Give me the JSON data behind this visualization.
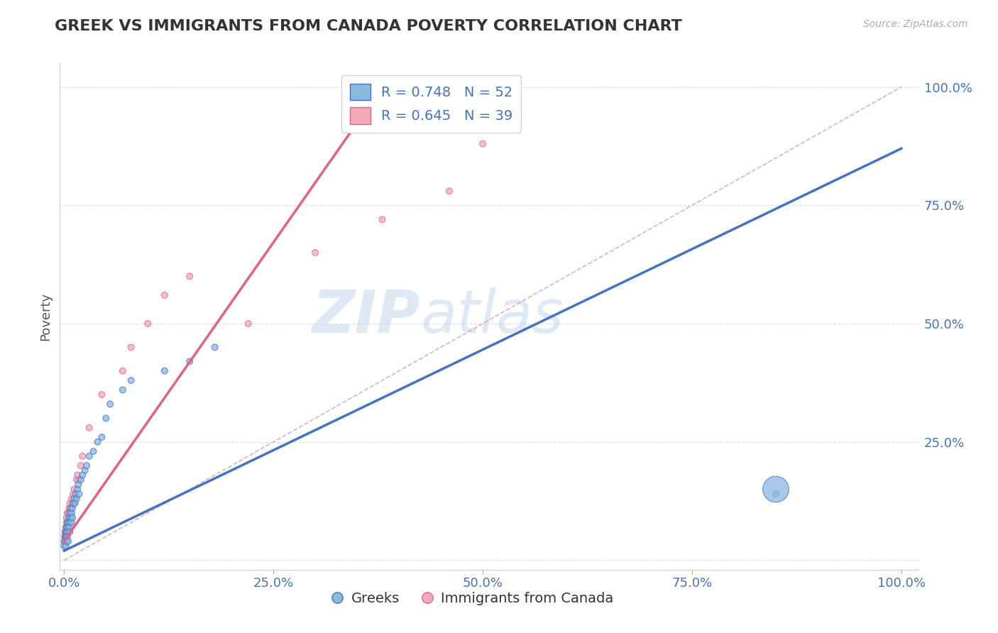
{
  "title": "GREEK VS IMMIGRANTS FROM CANADA POVERTY CORRELATION CHART",
  "source_text": "Source: ZipAtlas.com",
  "ylabel": "Poverty",
  "watermark_zip": "ZIP",
  "watermark_atlas": "atlas",
  "background_color": "#ffffff",
  "blue_color": "#89b8e0",
  "pink_color": "#f4a8bc",
  "blue_line_color": "#4472c4",
  "pink_line_color": "#e8607a",
  "legend_blue_label": "R = 0.748   N = 52",
  "legend_pink_label": "R = 0.645   N = 39",
  "bottom_legend_blue": "Greeks",
  "bottom_legend_pink": "Immigrants from Canada",
  "Greeks_x": [
    0.0,
    0.001,
    0.001,
    0.002,
    0.002,
    0.002,
    0.003,
    0.003,
    0.003,
    0.003,
    0.004,
    0.004,
    0.004,
    0.005,
    0.005,
    0.005,
    0.006,
    0.006,
    0.007,
    0.007,
    0.007,
    0.008,
    0.008,
    0.009,
    0.009,
    0.01,
    0.01,
    0.011,
    0.012,
    0.013,
    0.014,
    0.015,
    0.016,
    0.017,
    0.018,
    0.02,
    0.022,
    0.025,
    0.027,
    0.03,
    0.035,
    0.04,
    0.045,
    0.05,
    0.055,
    0.07,
    0.08,
    0.12,
    0.15,
    0.18,
    0.85,
    0.85
  ],
  "Greeks_y": [
    0.03,
    0.04,
    0.05,
    0.03,
    0.05,
    0.06,
    0.04,
    0.05,
    0.06,
    0.07,
    0.05,
    0.07,
    0.08,
    0.04,
    0.06,
    0.08,
    0.07,
    0.09,
    0.06,
    0.08,
    0.1,
    0.09,
    0.11,
    0.08,
    0.1,
    0.09,
    0.11,
    0.12,
    0.13,
    0.12,
    0.14,
    0.13,
    0.15,
    0.16,
    0.14,
    0.17,
    0.18,
    0.19,
    0.2,
    0.22,
    0.23,
    0.25,
    0.26,
    0.3,
    0.33,
    0.36,
    0.38,
    0.4,
    0.42,
    0.45,
    0.14,
    0.15
  ],
  "Greeks_sizes": [
    40,
    40,
    40,
    40,
    40,
    40,
    40,
    40,
    40,
    40,
    40,
    40,
    40,
    40,
    40,
    40,
    40,
    40,
    40,
    40,
    40,
    40,
    40,
    40,
    40,
    40,
    40,
    40,
    40,
    40,
    40,
    40,
    40,
    40,
    40,
    40,
    40,
    40,
    40,
    40,
    40,
    40,
    40,
    40,
    40,
    40,
    40,
    40,
    40,
    40,
    40,
    700
  ],
  "Canada_x": [
    0.0,
    0.001,
    0.001,
    0.002,
    0.002,
    0.003,
    0.003,
    0.003,
    0.004,
    0.004,
    0.005,
    0.005,
    0.006,
    0.006,
    0.007,
    0.007,
    0.008,
    0.009,
    0.01,
    0.011,
    0.012,
    0.013,
    0.015,
    0.016,
    0.018,
    0.02,
    0.022,
    0.03,
    0.045,
    0.07,
    0.08,
    0.1,
    0.12,
    0.15,
    0.22,
    0.3,
    0.38,
    0.46,
    0.5
  ],
  "Canada_y": [
    0.04,
    0.05,
    0.06,
    0.05,
    0.07,
    0.06,
    0.08,
    0.09,
    0.07,
    0.1,
    0.08,
    0.1,
    0.09,
    0.11,
    0.1,
    0.12,
    0.11,
    0.13,
    0.12,
    0.14,
    0.15,
    0.13,
    0.17,
    0.18,
    0.17,
    0.2,
    0.22,
    0.28,
    0.35,
    0.4,
    0.45,
    0.5,
    0.56,
    0.6,
    0.5,
    0.65,
    0.72,
    0.78,
    0.88
  ],
  "Canada_sizes": [
    40,
    40,
    40,
    40,
    40,
    40,
    40,
    40,
    40,
    40,
    40,
    40,
    40,
    40,
    40,
    40,
    40,
    40,
    40,
    40,
    40,
    40,
    40,
    40,
    40,
    40,
    40,
    40,
    40,
    40,
    40,
    40,
    40,
    40,
    40,
    40,
    40,
    40,
    40
  ],
  "blue_line_x0": 0.0,
  "blue_line_y0": 0.02,
  "blue_line_x1": 1.0,
  "blue_line_y1": 0.87,
  "pink_line_x0": 0.0,
  "pink_line_y0": 0.04,
  "pink_line_x1": 0.38,
  "pink_line_y1": 1.0,
  "diag_line_color": "#ddaaaa",
  "grid_color": "#dddddd",
  "ytick_values": [
    0.0,
    0.25,
    0.5,
    0.75,
    1.0
  ],
  "xtick_values": [
    0.0,
    0.25,
    0.5,
    0.75,
    1.0
  ],
  "xtick_labels": [
    "0.0%",
    "25.0%",
    "50.0%",
    "75.0%",
    "100.0%"
  ],
  "ytick_labels": [
    "",
    "25.0%",
    "50.0%",
    "75.0%",
    "100.0%"
  ]
}
